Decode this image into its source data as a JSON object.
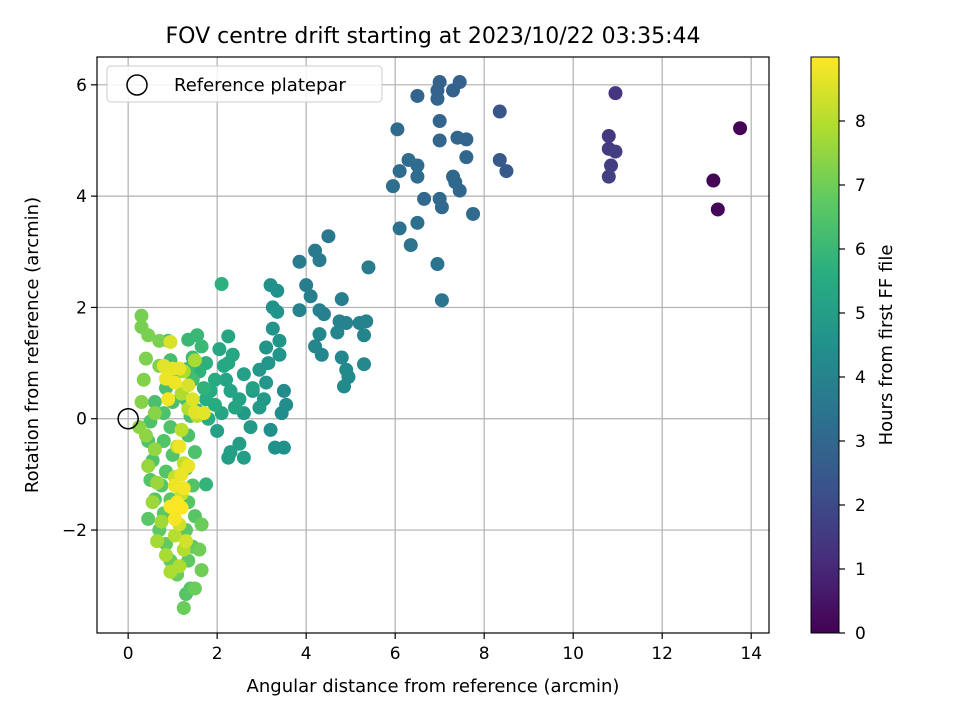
{
  "chart_data": {
    "type": "scatter",
    "title": "FOV centre drift starting at 2023/10/22 03:35:44",
    "xlabel": "Angular distance from reference (arcmin)",
    "ylabel": "Rotation from reference (arcmin)",
    "xlim": [
      -0.7,
      14.4
    ],
    "ylim": [
      -3.85,
      6.5
    ],
    "x_ticks": [
      0,
      2,
      4,
      6,
      8,
      10,
      12,
      14
    ],
    "y_ticks": [
      -2,
      0,
      2,
      4,
      6
    ],
    "y_tick_labels": [
      "−2",
      "0",
      "2",
      "4",
      "6"
    ],
    "grid": true,
    "legend": {
      "placement": "top-left",
      "entries": [
        "Reference platepar"
      ]
    },
    "reference_point": {
      "x": 0,
      "y": 0
    },
    "colorbar": {
      "label": "Hours from first FF file",
      "colormap": "viridis",
      "range": [
        0,
        9
      ],
      "ticks": [
        0,
        1,
        2,
        3,
        4,
        5,
        6,
        7,
        8
      ]
    },
    "points": [
      {
        "x": 13.75,
        "y": 5.22,
        "t": 0.05
      },
      {
        "x": 13.15,
        "y": 4.28,
        "t": 0.1
      },
      {
        "x": 13.25,
        "y": 3.76,
        "t": 0.15
      },
      {
        "x": 10.95,
        "y": 5.85,
        "t": 1.4
      },
      {
        "x": 10.8,
        "y": 5.08,
        "t": 1.5
      },
      {
        "x": 10.8,
        "y": 4.85,
        "t": 1.55
      },
      {
        "x": 10.95,
        "y": 4.8,
        "t": 1.6
      },
      {
        "x": 10.85,
        "y": 4.55,
        "t": 1.6
      },
      {
        "x": 10.8,
        "y": 4.35,
        "t": 1.7
      },
      {
        "x": 8.35,
        "y": 5.52,
        "t": 2.4
      },
      {
        "x": 8.35,
        "y": 4.65,
        "t": 2.5
      },
      {
        "x": 8.5,
        "y": 4.45,
        "t": 2.5
      },
      {
        "x": 7.45,
        "y": 6.05,
        "t": 2.8
      },
      {
        "x": 7.0,
        "y": 6.05,
        "t": 2.8
      },
      {
        "x": 6.95,
        "y": 5.9,
        "t": 2.85
      },
      {
        "x": 7.3,
        "y": 5.9,
        "t": 2.85
      },
      {
        "x": 6.95,
        "y": 5.75,
        "t": 2.9
      },
      {
        "x": 6.5,
        "y": 5.8,
        "t": 2.9
      },
      {
        "x": 7.0,
        "y": 5.35,
        "t": 2.9
      },
      {
        "x": 7.4,
        "y": 5.05,
        "t": 2.95
      },
      {
        "x": 7.6,
        "y": 5.02,
        "t": 2.95
      },
      {
        "x": 7.0,
        "y": 5.0,
        "t": 2.95
      },
      {
        "x": 7.6,
        "y": 4.7,
        "t": 3.0
      },
      {
        "x": 7.3,
        "y": 4.35,
        "t": 3.0
      },
      {
        "x": 7.35,
        "y": 4.25,
        "t": 3.0
      },
      {
        "x": 7.45,
        "y": 4.1,
        "t": 3.0
      },
      {
        "x": 6.65,
        "y": 3.95,
        "t": 3.05
      },
      {
        "x": 7.0,
        "y": 3.95,
        "t": 3.05
      },
      {
        "x": 7.05,
        "y": 3.8,
        "t": 3.05
      },
      {
        "x": 7.75,
        "y": 3.68,
        "t": 3.1
      },
      {
        "x": 6.05,
        "y": 5.2,
        "t": 3.1
      },
      {
        "x": 6.3,
        "y": 4.65,
        "t": 3.15
      },
      {
        "x": 6.5,
        "y": 4.55,
        "t": 3.15
      },
      {
        "x": 6.5,
        "y": 4.35,
        "t": 3.2
      },
      {
        "x": 6.1,
        "y": 4.45,
        "t": 3.2
      },
      {
        "x": 5.95,
        "y": 4.18,
        "t": 3.25
      },
      {
        "x": 6.5,
        "y": 3.52,
        "t": 3.3
      },
      {
        "x": 6.1,
        "y": 3.42,
        "t": 3.35
      },
      {
        "x": 6.35,
        "y": 3.12,
        "t": 3.4
      },
      {
        "x": 6.95,
        "y": 2.78,
        "t": 3.45
      },
      {
        "x": 7.05,
        "y": 2.13,
        "t": 3.5
      },
      {
        "x": 4.5,
        "y": 3.28,
        "t": 3.6
      },
      {
        "x": 4.2,
        "y": 3.02,
        "t": 3.65
      },
      {
        "x": 4.3,
        "y": 2.85,
        "t": 3.7
      },
      {
        "x": 5.4,
        "y": 2.72,
        "t": 3.7
      },
      {
        "x": 3.85,
        "y": 2.82,
        "t": 3.75
      },
      {
        "x": 4.0,
        "y": 2.4,
        "t": 3.8
      },
      {
        "x": 4.1,
        "y": 2.2,
        "t": 3.85
      },
      {
        "x": 4.8,
        "y": 2.15,
        "t": 3.85
      },
      {
        "x": 4.3,
        "y": 1.95,
        "t": 3.9
      },
      {
        "x": 4.4,
        "y": 1.88,
        "t": 3.9
      },
      {
        "x": 3.85,
        "y": 1.95,
        "t": 3.95
      },
      {
        "x": 4.75,
        "y": 1.75,
        "t": 3.95
      },
      {
        "x": 4.9,
        "y": 1.72,
        "t": 4.0
      },
      {
        "x": 5.2,
        "y": 1.72,
        "t": 4.0
      },
      {
        "x": 5.35,
        "y": 1.75,
        "t": 4.0
      },
      {
        "x": 5.3,
        "y": 1.5,
        "t": 4.05
      },
      {
        "x": 4.7,
        "y": 1.55,
        "t": 4.05
      },
      {
        "x": 4.3,
        "y": 1.52,
        "t": 4.1
      },
      {
        "x": 4.2,
        "y": 1.3,
        "t": 4.1
      },
      {
        "x": 4.35,
        "y": 1.15,
        "t": 4.15
      },
      {
        "x": 4.8,
        "y": 1.1,
        "t": 4.15
      },
      {
        "x": 5.3,
        "y": 0.98,
        "t": 4.2
      },
      {
        "x": 4.95,
        "y": 0.75,
        "t": 4.2
      },
      {
        "x": 4.9,
        "y": 0.88,
        "t": 4.25
      },
      {
        "x": 4.85,
        "y": 0.58,
        "t": 4.25
      },
      {
        "x": 3.5,
        "y": 0.5,
        "t": 4.3
      },
      {
        "x": 3.55,
        "y": 0.25,
        "t": 4.35
      },
      {
        "x": 3.45,
        "y": 0.1,
        "t": 4.4
      },
      {
        "x": 3.2,
        "y": -0.2,
        "t": 4.45
      },
      {
        "x": 3.3,
        "y": -0.52,
        "t": 4.5
      },
      {
        "x": 3.5,
        "y": -0.52,
        "t": 4.5
      },
      {
        "x": 3.2,
        "y": 2.4,
        "t": 4.5
      },
      {
        "x": 3.35,
        "y": 2.3,
        "t": 4.55
      },
      {
        "x": 3.25,
        "y": 2.0,
        "t": 4.55
      },
      {
        "x": 3.35,
        "y": 1.92,
        "t": 4.6
      },
      {
        "x": 3.25,
        "y": 1.62,
        "t": 4.6
      },
      {
        "x": 3.4,
        "y": 1.4,
        "t": 4.65
      },
      {
        "x": 3.1,
        "y": 1.28,
        "t": 4.65
      },
      {
        "x": 3.4,
        "y": 1.15,
        "t": 4.7
      },
      {
        "x": 3.15,
        "y": 1.0,
        "t": 4.7
      },
      {
        "x": 2.95,
        "y": 0.88,
        "t": 4.75
      },
      {
        "x": 3.1,
        "y": 0.65,
        "t": 4.75
      },
      {
        "x": 2.8,
        "y": 0.5,
        "t": 4.8
      },
      {
        "x": 3.05,
        "y": 0.35,
        "t": 4.8
      },
      {
        "x": 2.95,
        "y": 0.2,
        "t": 4.85
      },
      {
        "x": 2.6,
        "y": 0.1,
        "t": 4.85
      },
      {
        "x": 2.75,
        "y": -0.15,
        "t": 4.9
      },
      {
        "x": 2.5,
        "y": -0.45,
        "t": 4.95
      },
      {
        "x": 2.6,
        "y": -0.7,
        "t": 5.0
      },
      {
        "x": 2.3,
        "y": -0.6,
        "t": 5.05
      },
      {
        "x": 2.25,
        "y": -0.7,
        "t": 5.05
      },
      {
        "x": 2.0,
        "y": -0.22,
        "t": 5.1
      },
      {
        "x": 2.6,
        "y": 0.8,
        "t": 5.1
      },
      {
        "x": 2.8,
        "y": 0.55,
        "t": 5.15
      },
      {
        "x": 2.5,
        "y": 0.35,
        "t": 5.15
      },
      {
        "x": 2.3,
        "y": 0.5,
        "t": 5.2
      },
      {
        "x": 2.2,
        "y": 0.7,
        "t": 5.2
      },
      {
        "x": 2.4,
        "y": 0.2,
        "t": 5.25
      },
      {
        "x": 2.1,
        "y": 0.1,
        "t": 5.25
      },
      {
        "x": 2.25,
        "y": 1.0,
        "t": 5.3
      },
      {
        "x": 2.05,
        "y": 1.25,
        "t": 5.3
      },
      {
        "x": 2.25,
        "y": 1.48,
        "t": 5.35
      },
      {
        "x": 2.35,
        "y": 1.15,
        "t": 5.35
      },
      {
        "x": 2.15,
        "y": 0.95,
        "t": 5.4
      },
      {
        "x": 1.95,
        "y": 0.7,
        "t": 5.45
      },
      {
        "x": 1.85,
        "y": 0.5,
        "t": 5.5
      },
      {
        "x": 1.95,
        "y": 0.25,
        "t": 5.5
      },
      {
        "x": 1.75,
        "y": 0.35,
        "t": 5.55
      },
      {
        "x": 1.8,
        "y": 0.0,
        "t": 5.6
      },
      {
        "x": 2.1,
        "y": 2.42,
        "t": 5.7
      },
      {
        "x": 1.75,
        "y": 1.0,
        "t": 5.7
      },
      {
        "x": 1.6,
        "y": 0.85,
        "t": 5.75
      },
      {
        "x": 1.7,
        "y": 0.55,
        "t": 5.8
      },
      {
        "x": 1.55,
        "y": 0.15,
        "t": 5.8
      },
      {
        "x": 1.75,
        "y": -1.18,
        "t": 5.85
      },
      {
        "x": 1.55,
        "y": 1.5,
        "t": 6.0
      },
      {
        "x": 1.35,
        "y": 1.42,
        "t": 6.0
      },
      {
        "x": 1.65,
        "y": 1.3,
        "t": 6.05
      },
      {
        "x": 1.45,
        "y": 1.1,
        "t": 6.1
      },
      {
        "x": 1.35,
        "y": 0.9,
        "t": 6.15
      },
      {
        "x": 1.45,
        "y": 0.7,
        "t": 6.2
      },
      {
        "x": 1.3,
        "y": 0.35,
        "t": 6.25
      },
      {
        "x": 1.4,
        "y": 0.05,
        "t": 6.3
      },
      {
        "x": 1.35,
        "y": -0.3,
        "t": 6.35
      },
      {
        "x": 1.5,
        "y": -0.6,
        "t": 6.4
      },
      {
        "x": 1.3,
        "y": -0.9,
        "t": 6.45
      },
      {
        "x": 1.45,
        "y": -1.2,
        "t": 6.5
      },
      {
        "x": 1.35,
        "y": -1.5,
        "t": 6.55
      },
      {
        "x": 1.5,
        "y": -1.75,
        "t": 6.6
      },
      {
        "x": 1.3,
        "y": -2.0,
        "t": 6.65
      },
      {
        "x": 1.45,
        "y": -2.3,
        "t": 6.7
      },
      {
        "x": 1.35,
        "y": -2.55,
        "t": 6.75
      },
      {
        "x": 1.3,
        "y": -3.15,
        "t": 6.55
      },
      {
        "x": 1.4,
        "y": -3.05,
        "t": 6.6
      },
      {
        "x": 0.9,
        "y": 1.4,
        "t": 6.2
      },
      {
        "x": 0.95,
        "y": 1.05,
        "t": 6.25
      },
      {
        "x": 1.05,
        "y": 0.8,
        "t": 6.3
      },
      {
        "x": 0.85,
        "y": 0.55,
        "t": 6.35
      },
      {
        "x": 1.0,
        "y": 0.3,
        "t": 6.35
      },
      {
        "x": 0.8,
        "y": 0.1,
        "t": 6.4
      },
      {
        "x": 0.95,
        "y": -0.15,
        "t": 6.45
      },
      {
        "x": 0.8,
        "y": -0.4,
        "t": 6.5
      },
      {
        "x": 1.0,
        "y": -0.65,
        "t": 6.5
      },
      {
        "x": 0.85,
        "y": -0.95,
        "t": 6.55
      },
      {
        "x": 0.75,
        "y": -1.2,
        "t": 6.6
      },
      {
        "x": 0.95,
        "y": -1.45,
        "t": 6.65
      },
      {
        "x": 0.8,
        "y": -1.7,
        "t": 6.7
      },
      {
        "x": 0.7,
        "y": -2.0,
        "t": 6.75
      },
      {
        "x": 0.85,
        "y": -2.25,
        "t": 6.8
      },
      {
        "x": 0.95,
        "y": -2.55,
        "t": 6.85
      },
      {
        "x": 1.1,
        "y": -2.8,
        "t": 6.9
      },
      {
        "x": 0.6,
        "y": -1.45,
        "t": 6.6
      },
      {
        "x": 0.5,
        "y": -1.1,
        "t": 6.55
      },
      {
        "x": 0.55,
        "y": -0.75,
        "t": 6.5
      },
      {
        "x": 0.45,
        "y": -0.4,
        "t": 6.45
      },
      {
        "x": 0.5,
        "y": -0.05,
        "t": 6.4
      },
      {
        "x": 0.6,
        "y": 0.3,
        "t": 6.35
      },
      {
        "x": 0.45,
        "y": -1.8,
        "t": 6.65
      },
      {
        "x": 1.25,
        "y": -3.4,
        "t": 6.9
      },
      {
        "x": 1.5,
        "y": -3.05,
        "t": 6.9
      },
      {
        "x": 1.65,
        "y": -2.72,
        "t": 7.0
      },
      {
        "x": 1.6,
        "y": -2.35,
        "t": 7.0
      },
      {
        "x": 1.65,
        "y": -1.9,
        "t": 6.95
      },
      {
        "x": 0.3,
        "y": 1.85,
        "t": 7.1
      },
      {
        "x": 0.3,
        "y": 1.65,
        "t": 7.1
      },
      {
        "x": 0.45,
        "y": 1.5,
        "t": 7.15
      },
      {
        "x": 0.7,
        "y": 1.4,
        "t": 7.15
      },
      {
        "x": 0.4,
        "y": 1.08,
        "t": 7.2
      },
      {
        "x": 0.7,
        "y": 0.95,
        "t": 7.2
      },
      {
        "x": 0.35,
        "y": 0.7,
        "t": 7.25
      },
      {
        "x": 0.3,
        "y": 0.3,
        "t": 7.3
      },
      {
        "x": 0.6,
        "y": 0.1,
        "t": 7.35
      },
      {
        "x": 0.25,
        "y": -0.15,
        "t": 7.4
      },
      {
        "x": 0.4,
        "y": -0.3,
        "t": 7.45
      },
      {
        "x": 0.6,
        "y": -0.55,
        "t": 7.5
      },
      {
        "x": 0.45,
        "y": -0.85,
        "t": 7.55
      },
      {
        "x": 0.65,
        "y": -1.15,
        "t": 7.6
      },
      {
        "x": 0.55,
        "y": -1.5,
        "t": 7.65
      },
      {
        "x": 0.75,
        "y": -1.85,
        "t": 7.7
      },
      {
        "x": 0.65,
        "y": -2.2,
        "t": 7.75
      },
      {
        "x": 0.85,
        "y": -2.45,
        "t": 7.8
      },
      {
        "x": 0.95,
        "y": -2.75,
        "t": 7.85
      },
      {
        "x": 1.15,
        "y": -2.65,
        "t": 7.9
      },
      {
        "x": 1.25,
        "y": -2.35,
        "t": 7.95
      },
      {
        "x": 1.05,
        "y": -2.1,
        "t": 8.0
      },
      {
        "x": 1.5,
        "y": 1.05,
        "t": 7.8
      },
      {
        "x": 1.25,
        "y": 0.85,
        "t": 7.85
      },
      {
        "x": 1.2,
        "y": 0.45,
        "t": 7.9
      },
      {
        "x": 1.35,
        "y": 0.18,
        "t": 7.95
      },
      {
        "x": 1.55,
        "y": 0.05,
        "t": 8.0
      },
      {
        "x": 1.2,
        "y": -0.2,
        "t": 8.05
      },
      {
        "x": 1.1,
        "y": -0.5,
        "t": 8.1
      },
      {
        "x": 1.25,
        "y": -0.8,
        "t": 8.15
      },
      {
        "x": 1.05,
        "y": -1.05,
        "t": 8.2
      },
      {
        "x": 1.2,
        "y": -1.35,
        "t": 8.25
      },
      {
        "x": 1.0,
        "y": -1.6,
        "t": 8.3
      },
      {
        "x": 1.15,
        "y": -1.9,
        "t": 8.35
      },
      {
        "x": 1.3,
        "y": -2.2,
        "t": 8.4
      },
      {
        "x": 0.95,
        "y": 1.38,
        "t": 8.5
      },
      {
        "x": 0.8,
        "y": 0.95,
        "t": 8.6
      },
      {
        "x": 1.0,
        "y": 0.9,
        "t": 8.65
      },
      {
        "x": 1.15,
        "y": 0.9,
        "t": 8.7
      },
      {
        "x": 0.85,
        "y": 0.72,
        "t": 8.75
      },
      {
        "x": 1.05,
        "y": 0.65,
        "t": 8.8
      },
      {
        "x": 0.9,
        "y": 0.35,
        "t": 8.85
      },
      {
        "x": 1.35,
        "y": 0.6,
        "t": 8.5
      },
      {
        "x": 1.45,
        "y": 0.35,
        "t": 8.55
      },
      {
        "x": 1.5,
        "y": 0.12,
        "t": 8.6
      },
      {
        "x": 1.7,
        "y": 0.1,
        "t": 8.65
      },
      {
        "x": 1.35,
        "y": -0.85,
        "t": 8.7
      },
      {
        "x": 1.2,
        "y": -1.0,
        "t": 8.75
      },
      {
        "x": 1.05,
        "y": -1.2,
        "t": 8.8
      },
      {
        "x": 1.25,
        "y": -1.25,
        "t": 8.85
      },
      {
        "x": 1.1,
        "y": -1.5,
        "t": 8.9
      },
      {
        "x": 0.95,
        "y": -1.58,
        "t": 8.95
      },
      {
        "x": 1.2,
        "y": -1.6,
        "t": 9.0
      },
      {
        "x": 1.05,
        "y": -1.8,
        "t": 8.9
      },
      {
        "x": 1.15,
        "y": -0.5,
        "t": 8.8
      }
    ]
  }
}
